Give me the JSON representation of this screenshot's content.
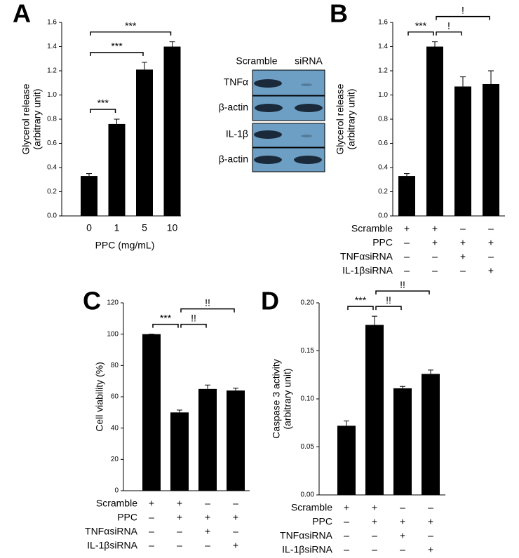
{
  "chart_data": [
    {
      "panel_label": "A",
      "type": "bar",
      "ylabel": [
        "Glycerol release",
        "(arbitrary unit)"
      ],
      "xlabel": "PPC (mg/mL)",
      "categories": [
        "0",
        "1",
        "5",
        "10"
      ],
      "values": [
        0.33,
        0.76,
        1.21,
        1.4
      ],
      "errors": [
        0.02,
        0.04,
        0.06,
        0.04
      ],
      "color": "#000000",
      "ylim": [
        0,
        1.6
      ],
      "yticks": [
        {
          "value": 0,
          "label": "0.0"
        },
        0.2,
        0.4,
        0.6,
        0.8,
        {
          "value": 1,
          "label": "1.0"
        },
        1.2,
        1.4,
        1.6
      ],
      "comparisons": [
        {
          "label": "***",
          "between": [
            0,
            1
          ]
        },
        {
          "label": "***",
          "between": [
            0,
            2
          ]
        },
        {
          "label": "***",
          "between": [
            0,
            3
          ]
        }
      ]
    },
    {
      "panel_label": "B",
      "type": "bar",
      "ylabel": [
        "Glycerol release",
        "(arbitrary unit)"
      ],
      "values": [
        0.33,
        1.4,
        1.07,
        1.09
      ],
      "errors": [
        0.02,
        0.04,
        0.08,
        0.11
      ],
      "color": "#000000",
      "ylim": [
        0,
        1.6
      ],
      "yticks": [
        {
          "value": 0,
          "label": "0.0"
        },
        0.2,
        0.4,
        0.6,
        0.8,
        {
          "value": 1,
          "label": "1.0"
        },
        1.2,
        1.4,
        1.6
      ],
      "conditions": [
        {
          "label": "Scramble",
          "signs": [
            "+",
            "+",
            "–",
            "–"
          ]
        },
        {
          "label": "PPC",
          "signs": [
            "–",
            "+",
            "+",
            "+"
          ]
        },
        {
          "label": "TNFαsiRNA",
          "signs": [
            "–",
            "–",
            "+",
            "–"
          ]
        },
        {
          "label": "IL-1βsiRNA",
          "signs": [
            "–",
            "–",
            "–",
            "+"
          ]
        }
      ],
      "comparisons": [
        {
          "label": "***",
          "between": [
            0,
            1
          ]
        },
        {
          "label": "!",
          "between": [
            1,
            2
          ]
        },
        {
          "label": "!",
          "between": [
            1,
            3
          ]
        }
      ]
    },
    {
      "panel_label": "C",
      "type": "bar",
      "ylabel": [
        "Cell viability (%)"
      ],
      "values": [
        100,
        50,
        65,
        64
      ],
      "errors": [
        0,
        1.5,
        2.5,
        1.5
      ],
      "color": "#000000",
      "ylim": [
        0,
        120
      ],
      "yticks": [
        0,
        20,
        40,
        60,
        80,
        100,
        120
      ],
      "conditions": [
        {
          "label": "Scramble",
          "signs": [
            "+",
            "+",
            "–",
            "–"
          ]
        },
        {
          "label": "PPC",
          "signs": [
            "–",
            "+",
            "+",
            "+"
          ]
        },
        {
          "label": "TNFαsiRNA",
          "signs": [
            "–",
            "–",
            "+",
            "–"
          ]
        },
        {
          "label": "IL-1βsiRNA",
          "signs": [
            "–",
            "–",
            "–",
            "+"
          ]
        }
      ],
      "comparisons": [
        {
          "label": "***",
          "between": [
            0,
            1
          ]
        },
        {
          "label": "!!",
          "between": [
            1,
            2
          ]
        },
        {
          "label": "!!",
          "between": [
            1,
            3
          ]
        }
      ]
    },
    {
      "panel_label": "D",
      "type": "bar",
      "ylabel": [
        "Caspase 3 activity",
        "(arbitrary unit)"
      ],
      "values": [
        0.072,
        0.177,
        0.111,
        0.126
      ],
      "errors": [
        0.005,
        0.009,
        0.002,
        0.004
      ],
      "color": "#000000",
      "ylim": [
        0,
        0.2
      ],
      "yticks": [
        {
          "value": 0,
          "label": "0.00"
        },
        {
          "value": 0.05,
          "label": "0.05"
        },
        {
          "value": 0.1,
          "label": "0.10"
        },
        {
          "value": 0.15,
          "label": "0.15"
        },
        {
          "value": 0.2,
          "label": "0.20"
        }
      ],
      "conditions": [
        {
          "label": "Scramble",
          "signs": [
            "+",
            "+",
            "–",
            "–"
          ]
        },
        {
          "label": "PPC",
          "signs": [
            "–",
            "+",
            "+",
            "+"
          ]
        },
        {
          "label": "TNFαsiRNA",
          "signs": [
            "–",
            "–",
            "+",
            "–"
          ]
        },
        {
          "label": "IL-1βsiRNA",
          "signs": [
            "–",
            "–",
            "–",
            "+"
          ]
        }
      ],
      "comparisons": [
        {
          "label": "***",
          "between": [
            0,
            1
          ]
        },
        {
          "label": "!!",
          "between": [
            1,
            2
          ]
        },
        {
          "label": "!!",
          "between": [
            1,
            3
          ]
        }
      ]
    }
  ],
  "blot": {
    "columns": [
      "Scramble",
      "siRNA"
    ],
    "rows": [
      "TNFα",
      "β-actin",
      "IL-1β",
      "β-actin"
    ]
  }
}
